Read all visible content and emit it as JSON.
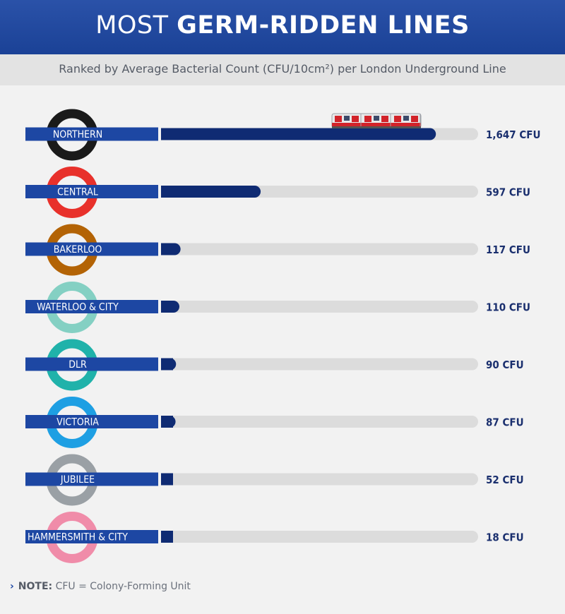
{
  "header": {
    "title_part1": "MOST ",
    "title_part2": "GERM-RIDDEN LINES",
    "subtitle": "Ranked by Average Bacterial Count (CFU/10cm²) per London Underground Line"
  },
  "colors": {
    "header_bg": "#1d47a3",
    "bar_fill": "#0f2b73",
    "track": "#dcdcdc",
    "label_bg": "#1d47a3",
    "value_text": "#1a2f6e"
  },
  "note": {
    "label": "NOTE:",
    "text": " CFU = Colony-Forming Unit"
  },
  "train_icon": "train-icon",
  "chart_data": {
    "type": "bar",
    "orientation": "horizontal",
    "categories": [
      "NORTHERN",
      "CENTRAL",
      "BAKERLOO",
      "WATERLOO & CITY",
      "DLR",
      "VICTORIA",
      "JUBILEE",
      "HAMMERSMITH & CITY"
    ],
    "values": [
      1647,
      597,
      117,
      110,
      90,
      87,
      52,
      18
    ],
    "value_labels": [
      "1,647 CFU",
      "597 CFU",
      "117 CFU",
      "110 CFU",
      "90 CFU",
      "87 CFU",
      "52 CFU",
      "18 CFU"
    ],
    "line_colors": [
      "#1a1a1a",
      "#e8312b",
      "#b36305",
      "#84d0c3",
      "#20b2aa",
      "#1e9fe3",
      "#9aa0a5",
      "#f08ca9"
    ],
    "title": "",
    "xlabel": "",
    "ylabel": "",
    "xlim": [
      0,
      1900
    ]
  }
}
